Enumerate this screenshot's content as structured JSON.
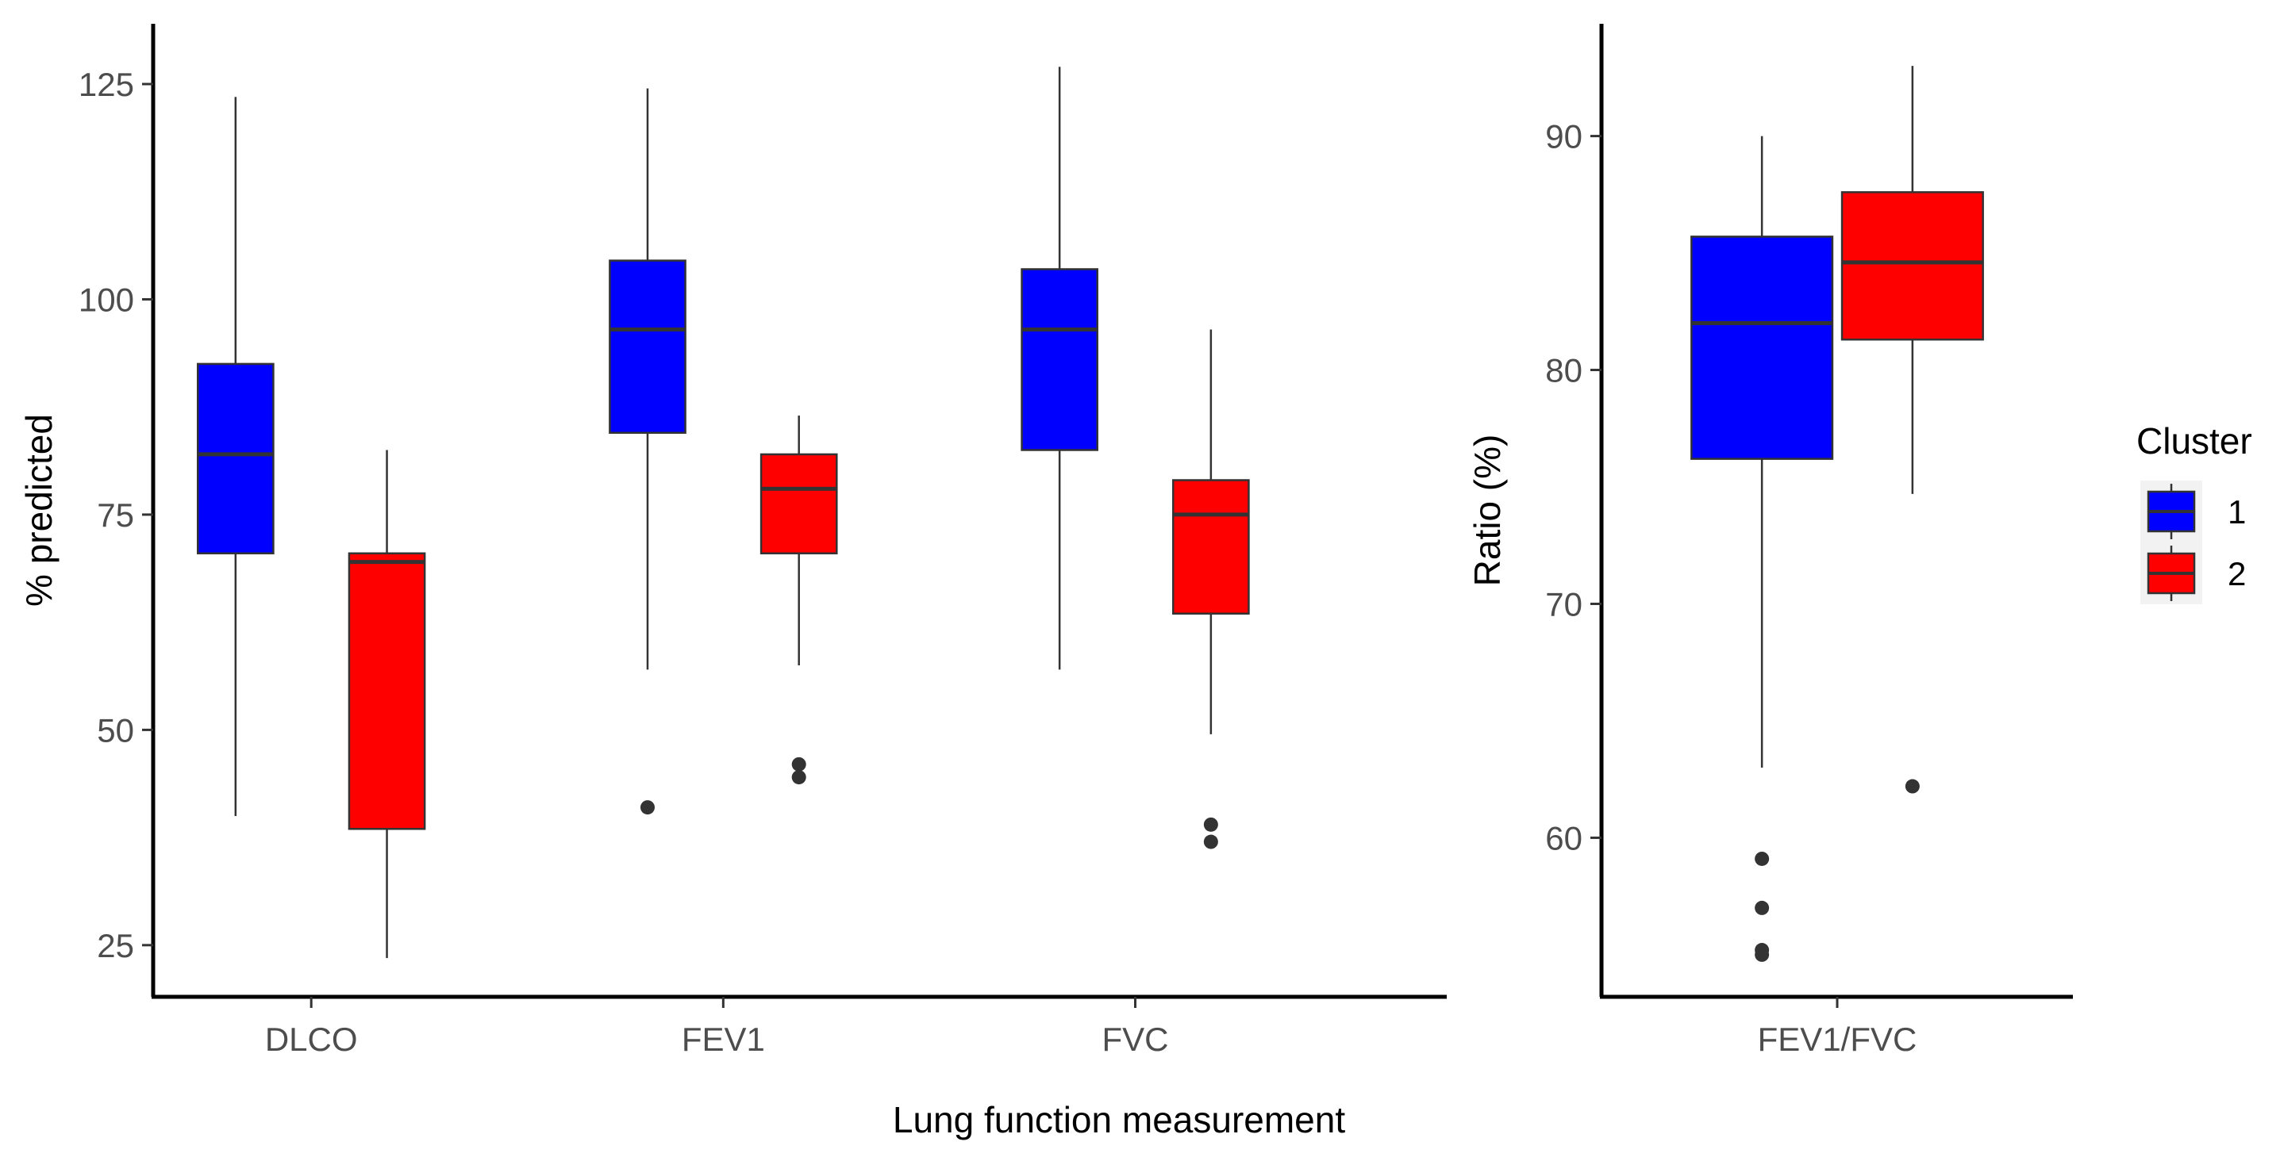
{
  "chart_data": [
    {
      "type": "boxplot",
      "panel": "left",
      "xlabel": "Lung function measurement",
      "ylabel": "% predicted",
      "ylim": [
        19,
        132
      ],
      "yticks": [
        25,
        50,
        75,
        100,
        125
      ],
      "categories": [
        "DLCO",
        "FEV1",
        "FVC"
      ],
      "series": [
        {
          "name": "1",
          "color": "#0000ff",
          "boxes": [
            {
              "category": "DLCO",
              "whisker_low": 40,
              "q1": 70.5,
              "median": 82,
              "q3": 92.5,
              "whisker_high": 123.5,
              "outliers": []
            },
            {
              "category": "FEV1",
              "whisker_low": 57,
              "q1": 84.5,
              "median": 96.5,
              "q3": 104.5,
              "whisker_high": 124.5,
              "outliers": [
                41
              ]
            },
            {
              "category": "FVC",
              "whisker_low": 57,
              "q1": 82.5,
              "median": 96.5,
              "q3": 103.5,
              "whisker_high": 127,
              "outliers": []
            }
          ]
        },
        {
          "name": "2",
          "color": "#ff0000",
          "boxes": [
            {
              "category": "DLCO",
              "whisker_low": 23.5,
              "q1": 38.5,
              "median": 69.5,
              "q3": 70.5,
              "whisker_high": 82.5,
              "outliers": []
            },
            {
              "category": "FEV1",
              "whisker_low": 57.5,
              "q1": 70.5,
              "median": 78,
              "q3": 82,
              "whisker_high": 86.5,
              "outliers": [
                46,
                44.5
              ]
            },
            {
              "category": "FVC",
              "whisker_low": 49.5,
              "q1": 63.5,
              "median": 75,
              "q3": 79,
              "whisker_high": 96.5,
              "outliers": [
                39,
                37
              ]
            }
          ]
        }
      ]
    },
    {
      "type": "boxplot",
      "panel": "right",
      "xlabel": "",
      "ylabel": "Ratio (%)",
      "ylim": [
        53.2,
        94.8
      ],
      "yticks": [
        60,
        70,
        80,
        90
      ],
      "categories": [
        "FEV1/FVC"
      ],
      "series": [
        {
          "name": "1",
          "color": "#0000ff",
          "boxes": [
            {
              "category": "FEV1/FVC",
              "whisker_low": 63,
              "q1": 76.2,
              "median": 82,
              "q3": 85.7,
              "whisker_high": 90,
              "outliers": [
                59.1,
                57,
                55.2,
                55
              ]
            }
          ]
        },
        {
          "name": "2",
          "color": "#ff0000",
          "boxes": [
            {
              "category": "FEV1/FVC",
              "whisker_low": 74.7,
              "q1": 81.3,
              "median": 84.6,
              "q3": 87.6,
              "whisker_high": 93,
              "outliers": [
                62.2
              ]
            }
          ]
        }
      ]
    }
  ],
  "legend": {
    "title": "Cluster",
    "position": "right",
    "entries": [
      {
        "label": "1",
        "color": "#0000ff"
      },
      {
        "label": "2",
        "color": "#ff0000"
      }
    ]
  }
}
